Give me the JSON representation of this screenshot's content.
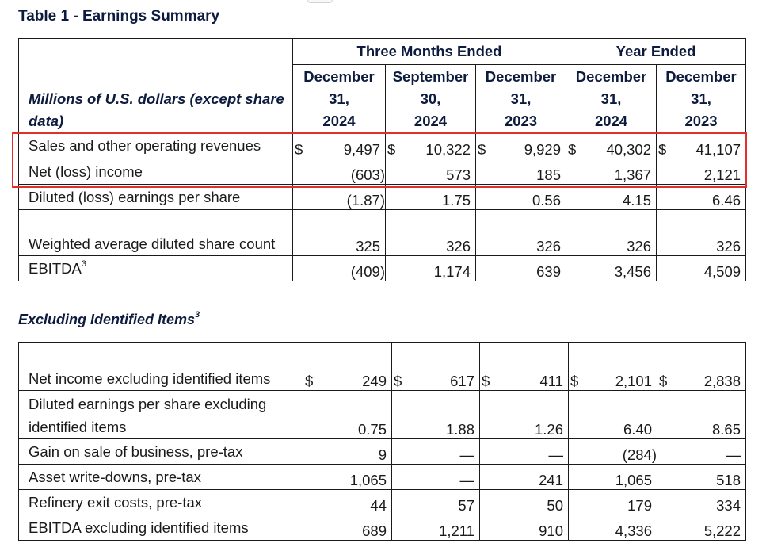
{
  "table1": {
    "title": "Table 1 - Earnings Summary",
    "label_header": "Millions of U.S. dollars (except share data)",
    "group_headers": [
      "Three Months Ended",
      "Year Ended"
    ],
    "column_headers": [
      {
        "month": "December",
        "day": "31,",
        "year": "2024"
      },
      {
        "month": "September",
        "day": "30,",
        "year": "2024"
      },
      {
        "month": "December",
        "day": "31,",
        "year": "2023"
      },
      {
        "month": "December",
        "day": "31,",
        "year": "2024"
      },
      {
        "month": "December",
        "day": "31,",
        "year": "2023"
      }
    ],
    "rows": [
      {
        "label": "Sales and other operating revenues",
        "currency": "$",
        "values": [
          "9,497",
          "10,322",
          "9,929",
          "40,302",
          "41,107"
        ]
      },
      {
        "label": "Net (loss) income",
        "currency": "",
        "values": [
          "(603)",
          "573",
          "185",
          "1,367",
          "2,121"
        ]
      },
      {
        "label": "Diluted (loss) earnings per share",
        "currency": "",
        "values": [
          "(1.87)",
          "1.75",
          "0.56",
          "4.15",
          "6.46"
        ]
      },
      {
        "label": "Weighted average diluted share count",
        "currency": "",
        "values": [
          "325",
          "326",
          "326",
          "326",
          "326"
        ]
      },
      {
        "label": "EBITDA",
        "label_sup": "3",
        "currency": "",
        "values": [
          "(409)",
          "1,174",
          "639",
          "3,456",
          "4,509"
        ]
      }
    ]
  },
  "table2": {
    "title": "Excluding Identified Items",
    "title_sup": "3",
    "rows": [
      {
        "label": "Net income excluding identified items",
        "currency": "$",
        "values": [
          "249",
          "617",
          "411",
          "2,101",
          "2,838"
        ]
      },
      {
        "label": "Diluted earnings per share excluding identified items",
        "currency": "",
        "values": [
          "0.75",
          "1.88",
          "1.26",
          "6.40",
          "8.65"
        ]
      },
      {
        "label": "Gain on sale of business, pre-tax",
        "currency": "",
        "values": [
          "9",
          "—",
          "—",
          "(284)",
          "—"
        ]
      },
      {
        "label": "Asset write-downs, pre-tax",
        "currency": "",
        "values": [
          "1,065",
          "—",
          "241",
          "1,065",
          "518"
        ]
      },
      {
        "label": "Refinery exit costs, pre-tax",
        "currency": "",
        "values": [
          "44",
          "57",
          "50",
          "179",
          "334"
        ]
      },
      {
        "label": "EBITDA excluding identified items",
        "currency": "",
        "values": [
          "689",
          "1,211",
          "910",
          "4,336",
          "5,222"
        ]
      }
    ]
  },
  "colors": {
    "heading": "#0d1b3e",
    "highlight": "#e0302d",
    "border": "#1a1a1a"
  }
}
